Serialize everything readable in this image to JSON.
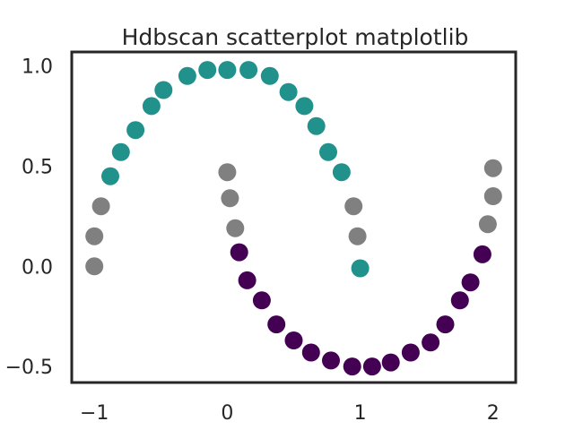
{
  "chart_data": {
    "type": "scatter",
    "title": "Hdbscan scatterplot matplotlib",
    "xlabel": "",
    "ylabel": "",
    "xlim": [
      -1.17,
      2.17
    ],
    "ylim": [
      -0.58,
      1.07
    ],
    "grid": false,
    "x_ticks": [
      {
        "value": -1,
        "label": "−1"
      },
      {
        "value": 0,
        "label": "0"
      },
      {
        "value": 1,
        "label": "1"
      },
      {
        "value": 2,
        "label": "2"
      }
    ],
    "y_ticks": [
      {
        "value": 1.0,
        "label": "1.0"
      },
      {
        "value": 0.5,
        "label": "0.5"
      },
      {
        "value": 0.0,
        "label": "0.0"
      },
      {
        "value": -0.5,
        "label": "−0.5"
      }
    ],
    "series": [
      {
        "cluster": "noise",
        "color": "#808080",
        "points": [
          [
            -1.0,
            0.0
          ],
          [
            -1.0,
            0.15
          ],
          [
            -0.95,
            0.3
          ],
          [
            0.0,
            0.47
          ],
          [
            0.02,
            0.34
          ],
          [
            0.06,
            0.19
          ],
          [
            0.95,
            0.3
          ],
          [
            0.98,
            0.15
          ],
          [
            2.0,
            0.49
          ],
          [
            2.0,
            0.35
          ],
          [
            1.96,
            0.21
          ]
        ]
      },
      {
        "cluster": "upper-moon",
        "color": "#21918c",
        "points": [
          [
            -0.88,
            0.45
          ],
          [
            -0.8,
            0.57
          ],
          [
            -0.69,
            0.68
          ],
          [
            -0.57,
            0.8
          ],
          [
            -0.48,
            0.88
          ],
          [
            -0.3,
            0.95
          ],
          [
            -0.15,
            0.98
          ],
          [
            0.0,
            0.98
          ],
          [
            0.16,
            0.98
          ],
          [
            0.32,
            0.95
          ],
          [
            0.46,
            0.87
          ],
          [
            0.58,
            0.8
          ],
          [
            0.67,
            0.7
          ],
          [
            0.76,
            0.57
          ],
          [
            0.86,
            0.47
          ],
          [
            1.0,
            -0.01
          ]
        ]
      },
      {
        "cluster": "lower-moon",
        "color": "#440154",
        "points": [
          [
            0.09,
            0.07
          ],
          [
            0.15,
            -0.07
          ],
          [
            0.26,
            -0.17
          ],
          [
            0.37,
            -0.29
          ],
          [
            0.5,
            -0.37
          ],
          [
            0.63,
            -0.43
          ],
          [
            0.78,
            -0.47
          ],
          [
            0.94,
            -0.5
          ],
          [
            1.09,
            -0.5
          ],
          [
            1.23,
            -0.48
          ],
          [
            1.38,
            -0.43
          ],
          [
            1.53,
            -0.38
          ],
          [
            1.64,
            -0.29
          ],
          [
            1.75,
            -0.17
          ],
          [
            1.83,
            -0.08
          ],
          [
            1.92,
            0.06
          ]
        ]
      }
    ]
  }
}
